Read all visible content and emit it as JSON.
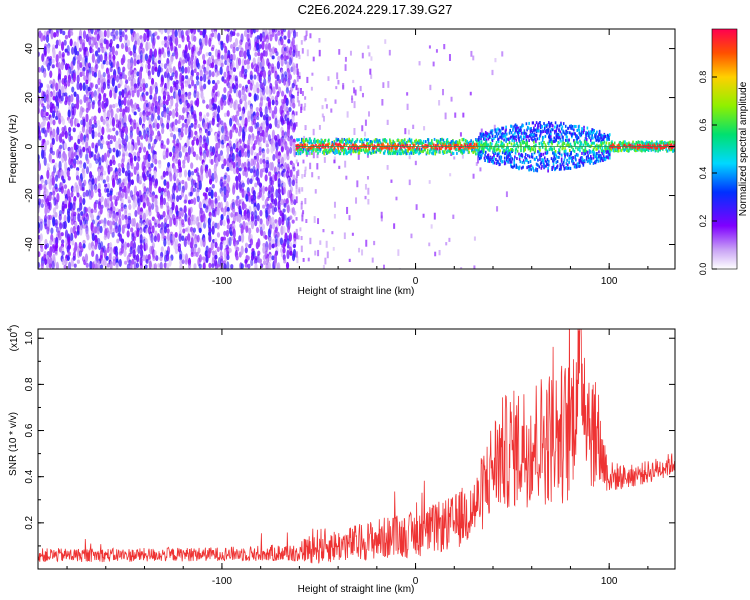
{
  "title": "C2E6.2024.229.17.39.G27",
  "colors": {
    "spectral_low": "#8a2be2",
    "snr_line": "#ee3333",
    "stripe": "#2e8b57"
  },
  "chart_data": [
    {
      "type": "heatmap",
      "xlabel": "Height of straight line (km)",
      "ylabel": "Frequency (Hz)",
      "xlim": [
        -195,
        134
      ],
      "ylim": [
        -50,
        48
      ],
      "x_ticks": [
        -100,
        0,
        100
      ],
      "y_ticks": [
        -40,
        -20,
        0,
        20,
        40
      ],
      "x_tick_labels": [
        "-100",
        "0",
        "100"
      ],
      "y_tick_labels": [
        "-40",
        "-20",
        "0",
        "20",
        "40"
      ],
      "colorbar": {
        "label": "Normalized spectral amplitude",
        "range": [
          0,
          1
        ],
        "ticks": [
          0.0,
          0.2,
          0.4,
          0.6,
          0.8
        ],
        "tick_labels": [
          "0.0",
          "0.2",
          "0.4",
          "0.6",
          "0.8"
        ],
        "colormap": "rainbow (purple to red)"
      },
      "regions": [
        {
          "x_range": [
            -195,
            -62
          ],
          "description": "broadband noise, amplitude 0.0-0.3"
        },
        {
          "x_range": [
            -62,
            32
          ],
          "frequency_center": 0,
          "frequency_halfwidth": 3,
          "amplitude": "0.3-1.0"
        },
        {
          "x_range": [
            32,
            100
          ],
          "frequency_center": 0,
          "frequency_halfwidth": 10,
          "amplitude": "0.2-0.6"
        },
        {
          "x_range": [
            100,
            134
          ],
          "frequency_center": 0,
          "frequency_halfwidth": 2,
          "amplitude": "0.8-1.0"
        }
      ]
    },
    {
      "type": "line",
      "xlabel": "Height of straight line (km)",
      "ylabel": "SNR (10 * v/v)",
      "y_scale_label": "(x10",
      "y_scale_exp": "4",
      "xlim": [
        -195,
        134
      ],
      "ylim": [
        0,
        1.04
      ],
      "x_ticks": [
        -100,
        0,
        100
      ],
      "y_ticks": [
        0.2,
        0.4,
        0.6,
        0.8,
        1.0
      ],
      "x_tick_labels": [
        "-100",
        "0",
        "100"
      ],
      "y_tick_labels": [
        "0.2",
        "0.4",
        "0.6",
        "0.8",
        "1.0"
      ],
      "series": [
        {
          "x": [
            -195,
            -150,
            -100,
            -62,
            -50,
            -40,
            -20,
            0,
            20,
            32,
            40,
            45,
            60,
            80,
            85,
            90,
            100,
            110,
            120,
            134
          ],
          "y": [
            0.06,
            0.06,
            0.065,
            0.07,
            0.1,
            0.1,
            0.13,
            0.15,
            0.2,
            0.28,
            0.45,
            0.5,
            0.55,
            0.6,
            0.9,
            0.65,
            0.4,
            0.4,
            0.42,
            0.46
          ],
          "spread": [
            0.03,
            0.03,
            0.03,
            0.04,
            0.08,
            0.07,
            0.09,
            0.1,
            0.12,
            0.15,
            0.22,
            0.25,
            0.28,
            0.32,
            0.3,
            0.3,
            0.07,
            0.05,
            0.05,
            0.05
          ]
        }
      ]
    }
  ]
}
